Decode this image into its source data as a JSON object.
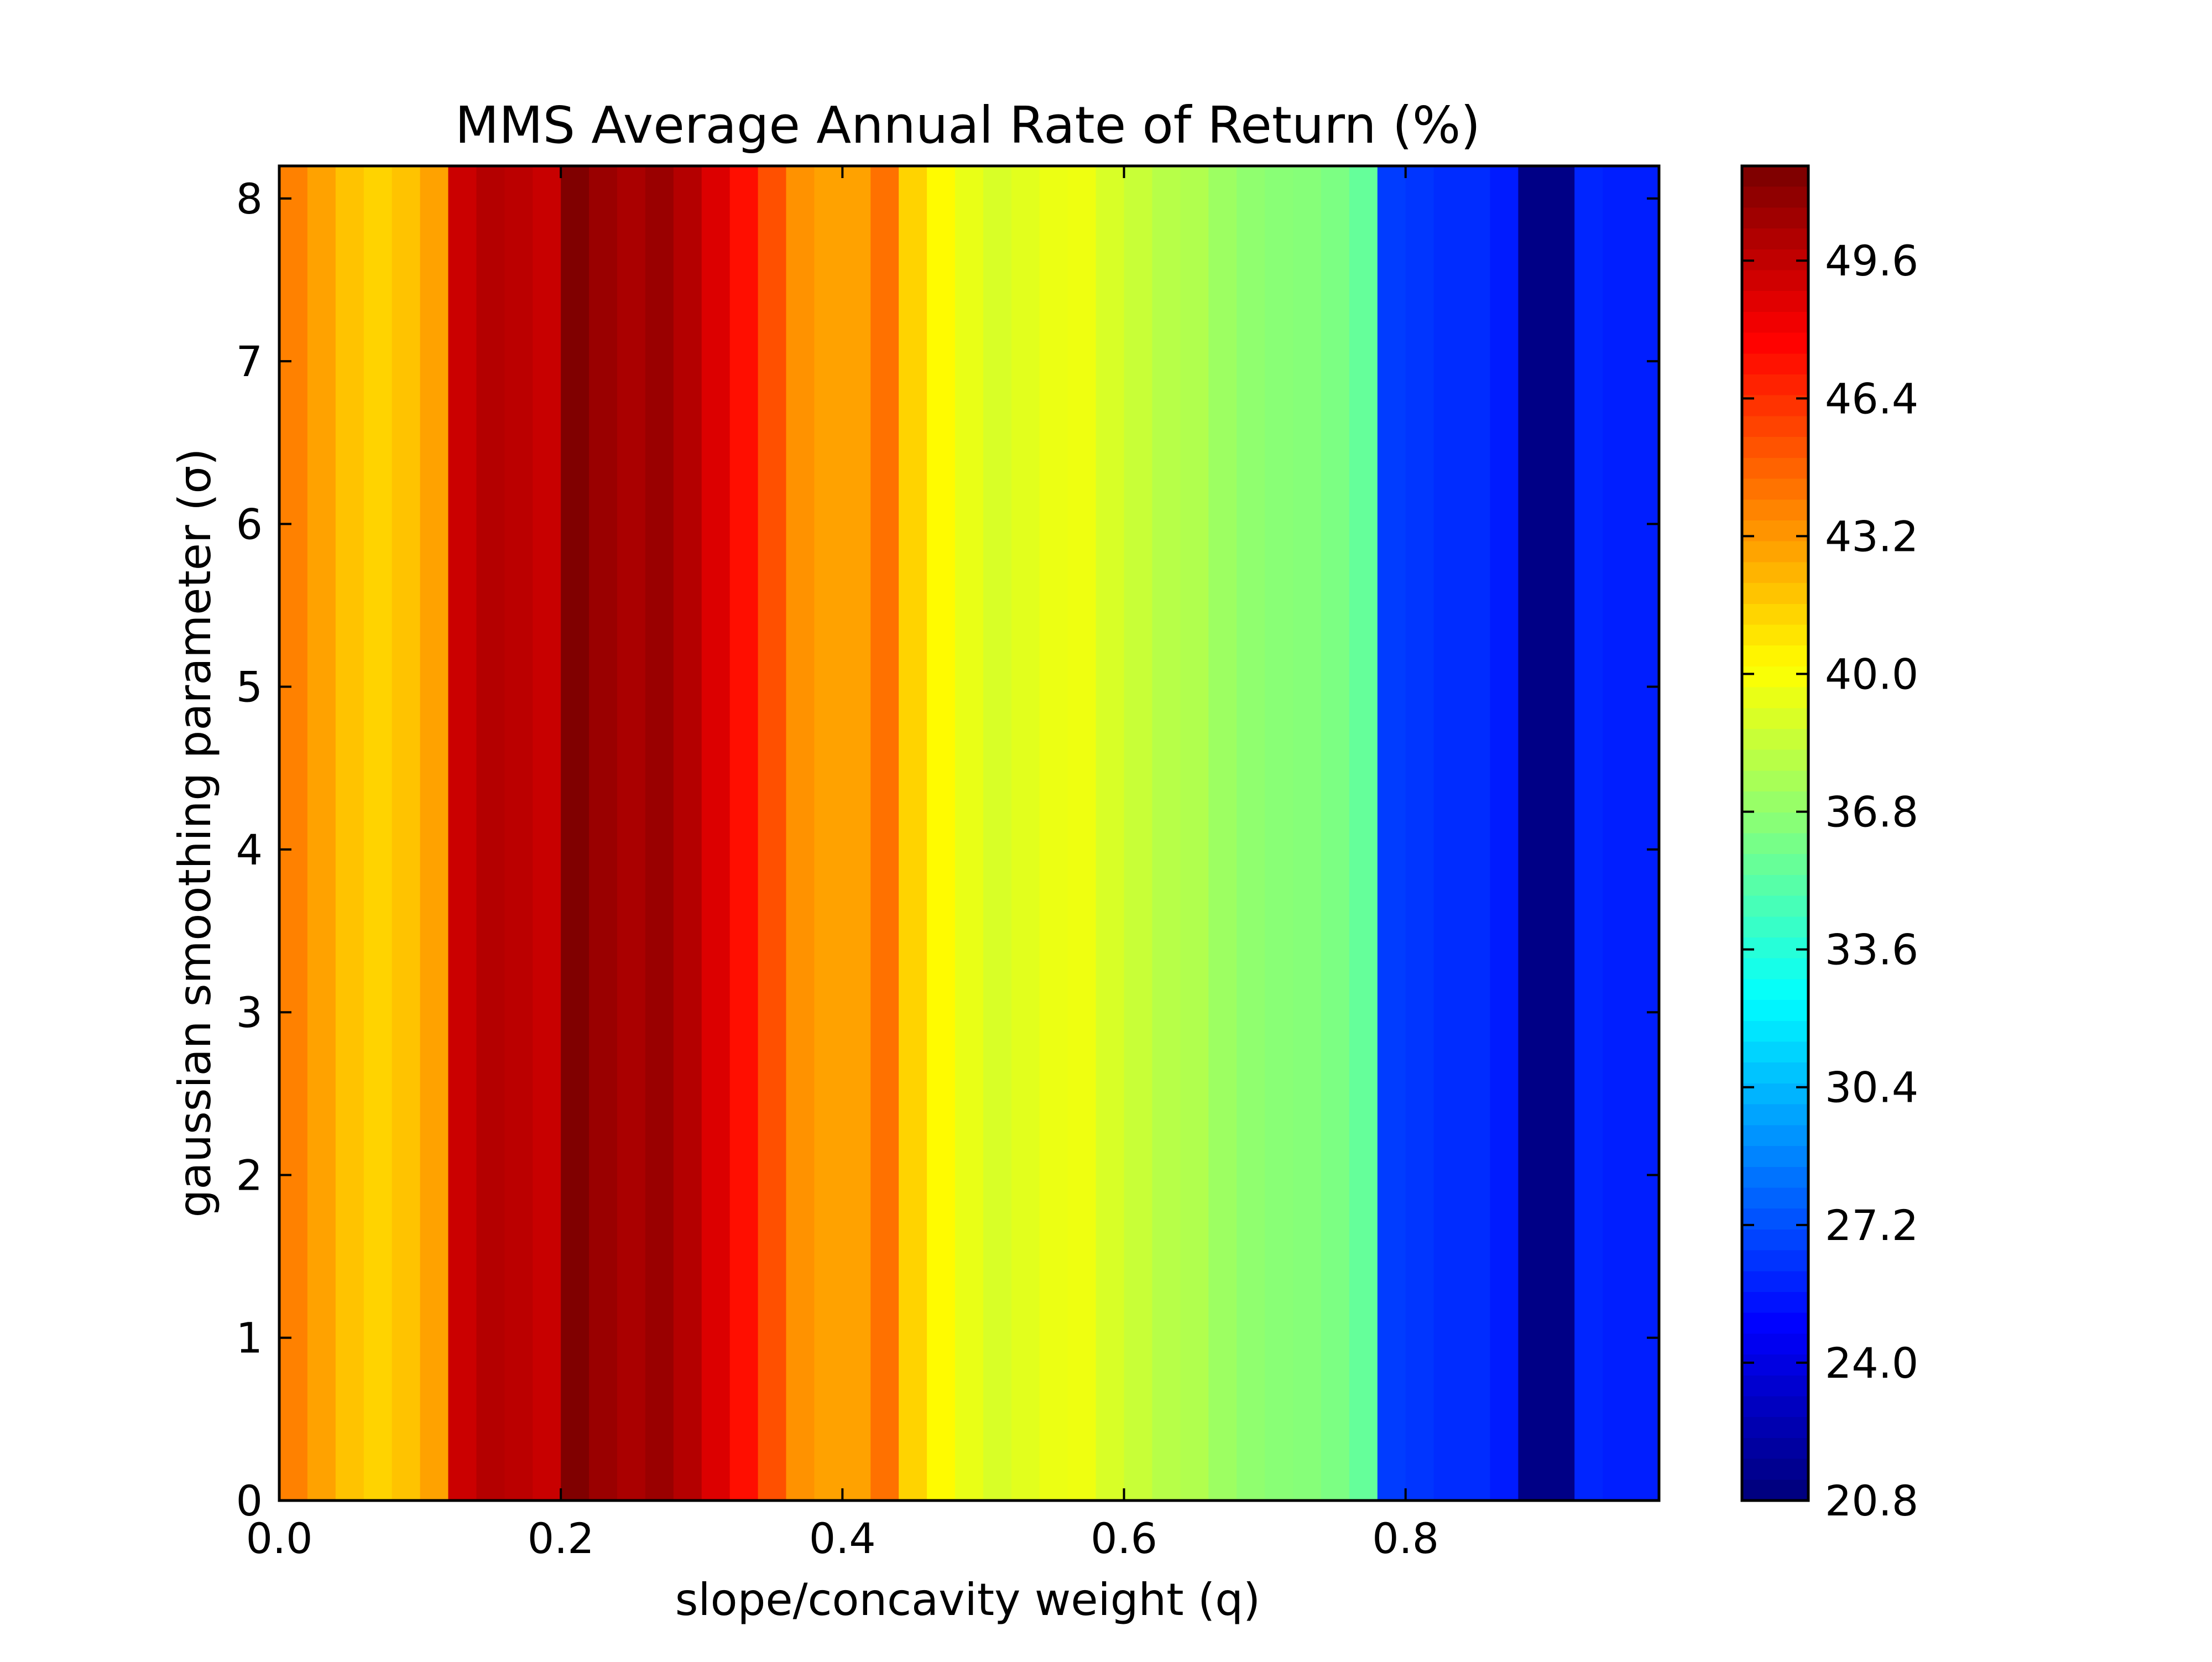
{
  "chart_data": {
    "type": "heatmap",
    "title": "MMS Average Annual Rate of Return (%)",
    "xlabel": "slope/concavity weight (q)",
    "ylabel": "gaussian smoothing parameter (σ)",
    "xlim": [
      0.0,
      0.98
    ],
    "ylim": [
      0,
      8.2
    ],
    "x_ticks": [
      "0.0",
      "0.2",
      "0.4",
      "0.6",
      "0.8"
    ],
    "y_ticks": [
      "0",
      "1",
      "2",
      "3",
      "4",
      "5",
      "6",
      "7",
      "8"
    ],
    "colormap": "jet",
    "color_range": [
      20.8,
      51.8
    ],
    "colorbar_ticks": [
      "20.8",
      "24.0",
      "27.2",
      "30.4",
      "33.6",
      "36.8",
      "40.0",
      "43.2",
      "46.4",
      "49.6"
    ],
    "grid": false,
    "note_values": "value depends only on q (constant along σ)",
    "q": [
      0.0,
      0.02,
      0.04,
      0.06,
      0.08,
      0.1,
      0.12,
      0.14,
      0.16,
      0.18,
      0.2,
      0.22,
      0.24,
      0.26,
      0.28,
      0.3,
      0.32,
      0.34,
      0.36,
      0.38,
      0.4,
      0.42,
      0.44,
      0.46,
      0.48,
      0.5,
      0.52,
      0.54,
      0.56,
      0.58,
      0.6,
      0.62,
      0.64,
      0.66,
      0.68,
      0.7,
      0.72,
      0.74,
      0.76,
      0.78,
      0.8,
      0.82,
      0.84,
      0.86,
      0.88,
      0.9,
      0.92,
      0.94,
      0.96
    ],
    "values": [
      44.0,
      43.0,
      42.0,
      41.5,
      42.0,
      43.0,
      49.5,
      50.2,
      50.0,
      49.6,
      51.8,
      51.0,
      50.5,
      51.0,
      50.2,
      49.0,
      47.5,
      45.5,
      43.5,
      43.0,
      43.0,
      44.5,
      41.5,
      40.3,
      39.5,
      39.0,
      39.3,
      39.6,
      39.7,
      39.0,
      38.5,
      38.0,
      37.8,
      37.2,
      36.8,
      36.6,
      36.5,
      36.2,
      35.5,
      26.5,
      26.3,
      26.0,
      26.0,
      25.5,
      21.0,
      21.0,
      25.8,
      25.6,
      25.6
    ]
  }
}
